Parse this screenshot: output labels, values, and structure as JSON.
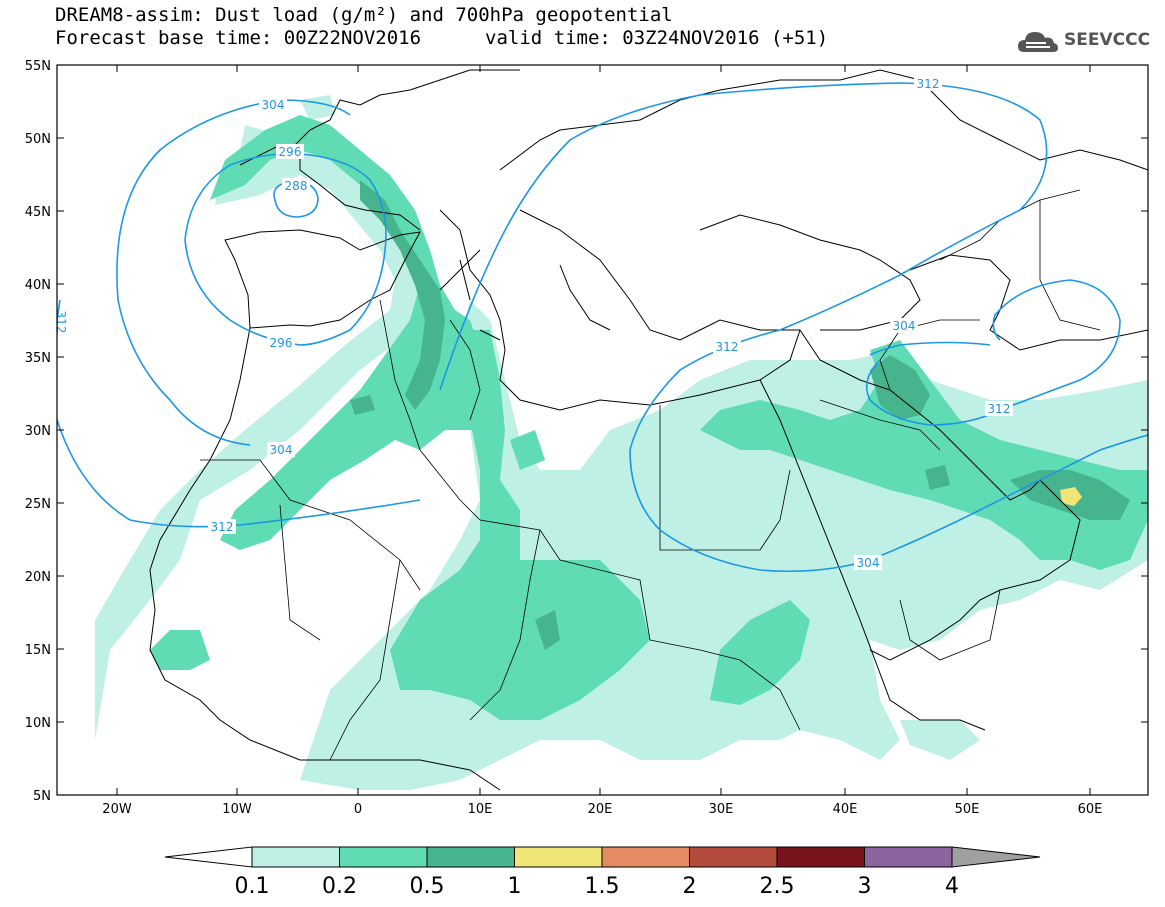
{
  "header": {
    "title_line1": "DREAM8-assim: Dust load (g/m²) and 700hPa geopotential",
    "base_time": "Forecast base time: 00Z22NOV2016",
    "valid_time": "valid time: 03Z24NOV2016 (+51)"
  },
  "logo": {
    "text": "SEEVCCC",
    "icon": "cloud-icon"
  },
  "map": {
    "lon_labels": [
      "20W",
      "10W",
      "0",
      "10E",
      "20E",
      "30E",
      "40E",
      "50E",
      "60E"
    ],
    "lat_labels": [
      "55N",
      "50N",
      "45N",
      "40N",
      "35N",
      "30N",
      "25N",
      "20N",
      "15N",
      "10N",
      "5N"
    ],
    "contour_labels": [
      "304",
      "296",
      "288",
      "296",
      "304",
      "312",
      "312",
      "312",
      "304",
      "304",
      "312",
      "312"
    ]
  },
  "colorbar": {
    "ticks": [
      "0.1",
      "0.2",
      "0.5",
      "1",
      "1.5",
      "2",
      "2.5",
      "3",
      "4"
    ],
    "colors": [
      "#bff0e6",
      "#5fdcb4",
      "#46b48c",
      "#f0e678",
      "#e68c64",
      "#b44b3c",
      "#78141e",
      "#8c64a0",
      "#a0a0a0"
    ],
    "under_color": "#ffffff"
  },
  "colors": {
    "contour": "#1e96e6",
    "border": "#000000"
  }
}
